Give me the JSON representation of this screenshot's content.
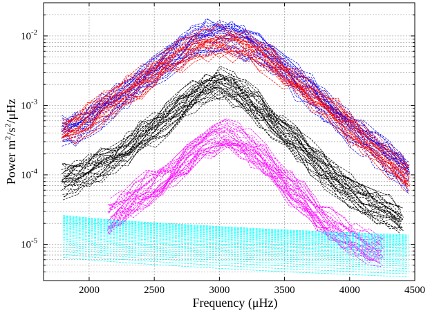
{
  "chart_data": {
    "type": "line",
    "xlabel": "Frequency (μHz)",
    "ylabel": {
      "base": "Power m",
      "sup1": "2",
      "mid": "/s",
      "sup2": "2",
      "tail": "/μHz"
    },
    "xlim": [
      1650,
      4500
    ],
    "ylim": [
      3e-06,
      0.03
    ],
    "yscale": "log",
    "grid": true,
    "x_ticks": [
      {
        "value": 2000,
        "label": "2000"
      },
      {
        "value": 2500,
        "label": "2500"
      },
      {
        "value": 3000,
        "label": "3000"
      },
      {
        "value": 3500,
        "label": "3500"
      },
      {
        "value": 4000,
        "label": "4000"
      },
      {
        "value": 4500,
        "label": "4500"
      }
    ],
    "y_ticks": [
      {
        "value": 1e-05,
        "base": "10",
        "exp": "-5"
      },
      {
        "value": 0.0001,
        "base": "10",
        "exp": "-4"
      },
      {
        "value": 0.001,
        "base": "10",
        "exp": "-3"
      },
      {
        "value": 0.01,
        "base": "10",
        "exp": "-2"
      }
    ],
    "series_groups": [
      {
        "color": "#0000ff",
        "count": 25,
        "x": [
          1800,
          1900,
          2000,
          2100,
          2200,
          2300,
          2400,
          2500,
          2600,
          2700,
          2800,
          2900,
          3000,
          3100,
          3200,
          3300,
          3400,
          3500,
          3600,
          3700,
          3800,
          3900,
          4000,
          4100,
          4200,
          4300,
          4400,
          4450
        ],
        "values": [
          0.0004,
          0.00045,
          0.0006,
          0.0008,
          0.0011,
          0.0015,
          0.0021,
          0.003,
          0.0042,
          0.0058,
          0.0078,
          0.0095,
          0.01,
          0.0095,
          0.008,
          0.0062,
          0.0045,
          0.0032,
          0.0022,
          0.0015,
          0.001,
          0.0007,
          0.00048,
          0.00034,
          0.00024,
          0.00017,
          0.00012,
          0.0001
        ]
      },
      {
        "color": "#ff0000",
        "count": 25,
        "x": [
          1800,
          1900,
          2000,
          2100,
          2200,
          2300,
          2400,
          2500,
          2600,
          2700,
          2800,
          2900,
          3000,
          3100,
          3200,
          3300,
          3400,
          3500,
          3600,
          3700,
          3800,
          3900,
          4000,
          4100,
          4200,
          4300,
          4400,
          4450
        ],
        "values": [
          0.00045,
          0.0005,
          0.00065,
          0.0009,
          0.0012,
          0.0016,
          0.0022,
          0.003,
          0.0042,
          0.0055,
          0.0068,
          0.0078,
          0.0082,
          0.0078,
          0.0068,
          0.0055,
          0.0042,
          0.003,
          0.0021,
          0.0015,
          0.001,
          0.0007,
          0.00048,
          0.00034,
          0.00024,
          0.00016,
          0.00011,
          9e-05
        ]
      },
      {
        "color": "#000000",
        "count": 30,
        "x": [
          1800,
          1900,
          2000,
          2100,
          2200,
          2300,
          2400,
          2500,
          2600,
          2700,
          2800,
          2900,
          3000,
          3100,
          3200,
          3300,
          3400,
          3500,
          3600,
          3700,
          3800,
          3900,
          4000,
          4100,
          4200,
          4300,
          4400
        ],
        "values": [
          8e-05,
          9e-05,
          0.00011,
          0.00014,
          0.00018,
          0.00024,
          0.00033,
          0.00046,
          0.00065,
          0.0009,
          0.0013,
          0.0017,
          0.0019,
          0.0017,
          0.0013,
          0.00092,
          0.00062,
          0.00041,
          0.00027,
          0.00018,
          0.00012,
          8e-05,
          5.7e-05,
          4.5e-05,
          3.6e-05,
          2.8e-05,
          2.2e-05
        ]
      },
      {
        "color": "#ff00ff",
        "count": 28,
        "x": [
          2150,
          2250,
          2350,
          2450,
          2550,
          2650,
          2750,
          2850,
          2950,
          3050,
          3150,
          3250,
          3350,
          3450,
          3550,
          3650,
          3750,
          3850,
          3950,
          4050,
          4150,
          4250
        ],
        "values": [
          2.5e-05,
          3.3e-05,
          4.5e-05,
          6.2e-05,
          8.6e-05,
          0.00012,
          0.00017,
          0.00025,
          0.00032,
          0.00035,
          0.00031,
          0.00024,
          0.00016,
          0.000105,
          6.5e-05,
          4.2e-05,
          2.8e-05,
          1.9e-05,
          1.4e-05,
          1.1e-05,
          9e-06,
          8.5e-06
        ]
      },
      {
        "color": "#00ffff",
        "count": 30,
        "x": [
          1800,
          2100,
          2400,
          2700,
          3000,
          3300,
          3600,
          3900,
          4200,
          4450
        ],
        "values": [
          1.3e-05,
          1.15e-05,
          1.05e-05,
          9.7e-06,
          9e-06,
          8.4e-06,
          7.9e-06,
          7.5e-06,
          7.1e-06,
          6.8e-06
        ],
        "spread": [
          0.5,
          2.0
        ]
      }
    ]
  }
}
